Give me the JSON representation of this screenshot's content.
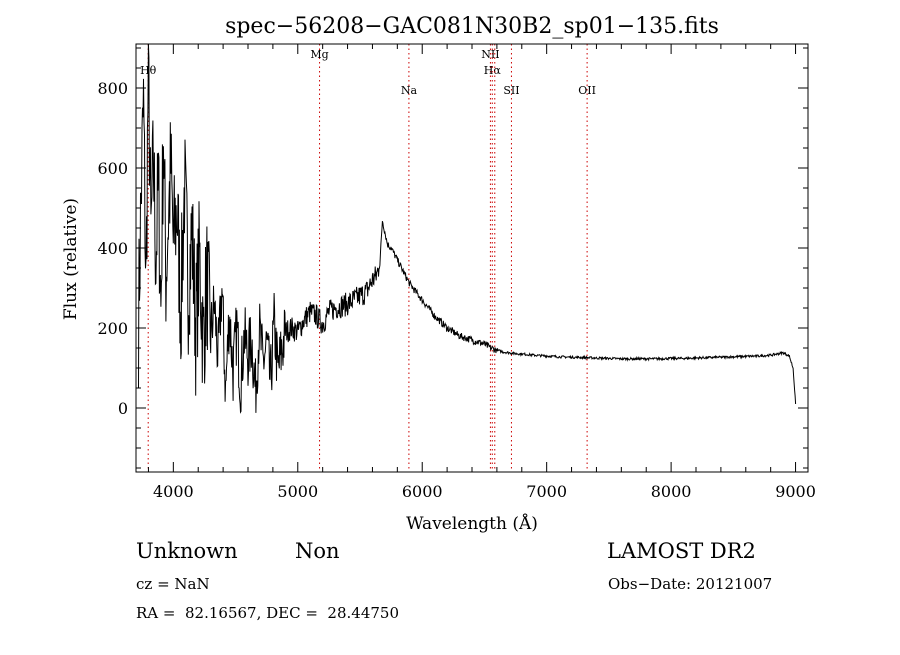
{
  "chart_data": {
    "type": "line",
    "title": "spec−56208−GAC081N30B2_sp01−135.fits",
    "xlabel": "Wavelength (Å)",
    "ylabel": "Flux (relative)",
    "xlim": [
      3700,
      9100
    ],
    "ylim": [
      -160,
      910
    ],
    "x_ticks": [
      4000,
      5000,
      6000,
      7000,
      8000,
      9000
    ],
    "y_ticks": [
      0,
      200,
      400,
      600,
      800
    ],
    "x_tick_labels": [
      "4000",
      "5000",
      "6000",
      "7000",
      "8000",
      "9000"
    ],
    "y_tick_labels": [
      "0",
      "200",
      "400",
      "600",
      "800"
    ],
    "line_color": "#000000",
    "marker_color": "#cc0000",
    "grid": false,
    "lines": [
      {
        "label": "Hθ",
        "wavelength": 3798,
        "label_y": 835
      },
      {
        "label": "Mg",
        "wavelength": 5175,
        "label_y": 875
      },
      {
        "label": "Na",
        "wavelength": 5893,
        "label_y": 785
      },
      {
        "label": "NII",
        "wavelength": 6548,
        "label_y": 875
      },
      {
        "label": "Hα",
        "wavelength": 6563,
        "label_y": 835
      },
      {
        "label": "NII",
        "wavelength": 6583,
        "label_y": null
      },
      {
        "label": "SII",
        "wavelength": 6717,
        "label_y": 785
      },
      {
        "label": "OII",
        "wavelength": 7325,
        "label_y": 785
      }
    ],
    "series": [
      {
        "x": [
          3720,
          3740,
          3760,
          3780,
          3800,
          3820,
          3840,
          3860,
          3880,
          3900,
          3920,
          3940,
          3960,
          3980,
          4000,
          4030,
          4060,
          4090,
          4120,
          4150,
          4180,
          4210,
          4240,
          4270,
          4300,
          4330,
          4360,
          4390,
          4420,
          4450,
          4480,
          4510,
          4540,
          4570,
          4600,
          4630,
          4660,
          4690,
          4720,
          4750,
          4780,
          4810,
          4840,
          4870,
          4900,
          4950,
          5000,
          5050,
          5100,
          5150,
          5200,
          5250,
          5300,
          5350,
          5400,
          5450,
          5500,
          5550,
          5600,
          5630,
          5660,
          5680,
          5700,
          5720,
          5750,
          5800,
          5850,
          5900,
          5950,
          6000,
          6050,
          6100,
          6150,
          6200,
          6250,
          6300,
          6350,
          6400,
          6450,
          6500,
          6550,
          6600,
          6650,
          6700,
          6750,
          6800,
          6900,
          7000,
          7100,
          7200,
          7300,
          7400,
          7500,
          7600,
          7700,
          7800,
          7900,
          8000,
          8100,
          8200,
          8300,
          8400,
          8500,
          8600,
          8700,
          8800,
          8850,
          8900,
          8950,
          8980,
          9000
        ],
        "y": [
          220,
          520,
          760,
          300,
          860,
          420,
          620,
          380,
          560,
          250,
          700,
          330,
          480,
          600,
          410,
          500,
          240,
          560,
          300,
          440,
          200,
          380,
          160,
          320,
          180,
          260,
          120,
          300,
          40,
          240,
          90,
          200,
          60,
          180,
          130,
          170,
          40,
          200,
          110,
          160,
          60,
          210,
          90,
          140,
          190,
          200,
          190,
          220,
          240,
          230,
          210,
          240,
          250,
          255,
          260,
          270,
          280,
          290,
          320,
          330,
          360,
          470,
          440,
          410,
          400,
          370,
          340,
          310,
          290,
          270,
          250,
          230,
          215,
          200,
          190,
          180,
          175,
          170,
          165,
          160,
          150,
          145,
          140,
          138,
          136,
          135,
          132,
          130,
          128,
          127,
          126,
          125,
          124,
          123,
          123,
          123,
          123,
          124,
          124,
          125,
          126,
          127,
          128,
          129,
          130,
          132,
          135,
          138,
          130,
          100,
          10
        ]
      }
    ]
  },
  "footer": {
    "class_label": "Unknown",
    "subclass_label": "Non",
    "survey": "LAMOST DR2",
    "cz": "cz = NaN",
    "obs_date": "Obs−Date: 20121007",
    "coords": "RA =  82.16567, DEC =  28.44750"
  }
}
